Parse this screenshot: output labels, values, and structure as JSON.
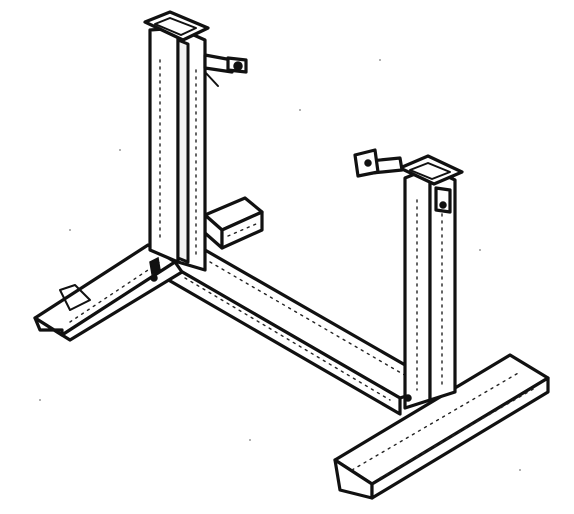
{
  "figure": {
    "subject": "table-stand-frame",
    "parts": [
      "left-upright",
      "right-upright",
      "left-foot",
      "right-foot",
      "lower-crossbar",
      "left-clamp-knob",
      "right-clamp-knob",
      "rear-stub-bar"
    ],
    "colors": {
      "ink": "#111111",
      "paper": "#ffffff"
    }
  }
}
